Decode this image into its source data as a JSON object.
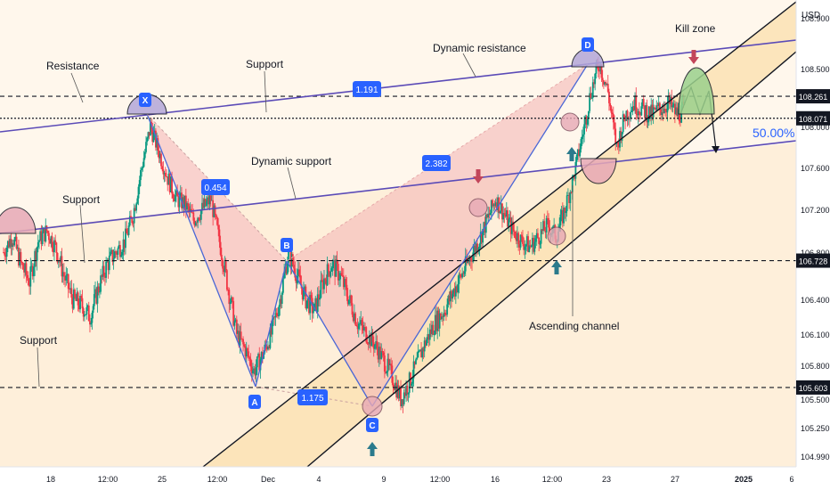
{
  "chart_data": {
    "type": "candlestick",
    "currency": "USD",
    "y_ticks": [
      "108.900",
      "108.500",
      "108.000",
      "107.600",
      "107.200",
      "106.800",
      "106.400",
      "106.100",
      "105.800",
      "105.500",
      "105.250",
      "104.990"
    ],
    "y_tick_values": [
      108.9,
      108.5,
      108.0,
      107.6,
      107.2,
      106.8,
      106.4,
      106.1,
      105.8,
      105.5,
      105.25,
      104.99
    ],
    "x_ticks": [
      "18",
      "12:00",
      "25",
      "12:00",
      "Dec",
      "4",
      "9",
      "12:00",
      "16",
      "12:00",
      "23",
      "27",
      "2025",
      "6"
    ],
    "level_labels": [
      {
        "text": "108.261",
        "value": 108.261,
        "style": "dashed"
      },
      {
        "text": "108.071",
        "value": 108.071,
        "style": "dotted"
      },
      {
        "text": "106.728",
        "value": 106.728,
        "style": "dashed"
      },
      {
        "text": "105.603",
        "value": 105.603,
        "style": "dashed"
      }
    ],
    "ratios": [
      "1.191",
      "0.454",
      "2.382",
      "1.175"
    ],
    "pattern_points": [
      "X",
      "A",
      "B",
      "C",
      "D"
    ],
    "annotations": {
      "resistance": "Resistance",
      "support_top": "Support",
      "dynamic_resistance": "Dynamic resistance",
      "kill_zone": "Kill zone",
      "dynamic_support": "Dynamic support",
      "support_left": "Support",
      "support_bottom": "Support",
      "ascending_channel": "Ascending channel",
      "fib_level": "50.00%"
    },
    "price_series": [
      106.8,
      106.95,
      106.7,
      106.55,
      106.9,
      107.0,
      106.85,
      106.6,
      106.4,
      106.35,
      106.25,
      106.5,
      106.7,
      106.8,
      106.9,
      107.15,
      107.6,
      108.0,
      107.75,
      107.5,
      107.3,
      107.25,
      107.1,
      107.2,
      107.3,
      106.9,
      106.5,
      106.1,
      105.95,
      105.75,
      105.9,
      106.1,
      106.4,
      106.8,
      106.6,
      106.4,
      106.3,
      106.55,
      106.7,
      106.6,
      106.4,
      106.2,
      106.1,
      106.0,
      105.85,
      105.7,
      105.5,
      105.65,
      105.85,
      106.05,
      106.2,
      106.3,
      106.45,
      106.6,
      106.75,
      106.9,
      107.1,
      107.3,
      107.15,
      107.0,
      106.9,
      106.85,
      106.95,
      107.05,
      106.95,
      107.2,
      107.5,
      107.9,
      108.3,
      108.55,
      108.3,
      107.8,
      108.1,
      108.2,
      108.15,
      108.1,
      108.15,
      108.2,
      108.1,
      108.15
    ]
  }
}
